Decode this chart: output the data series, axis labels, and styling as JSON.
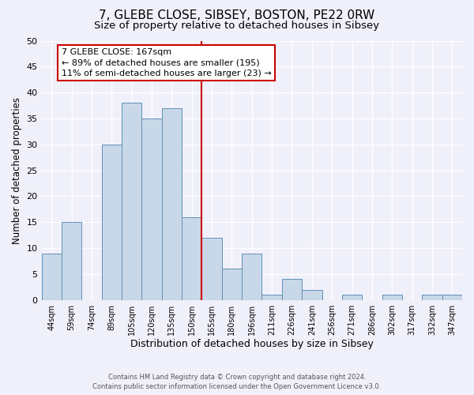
{
  "title": "7, GLEBE CLOSE, SIBSEY, BOSTON, PE22 0RW",
  "subtitle": "Size of property relative to detached houses in Sibsey",
  "xlabel": "Distribution of detached houses by size in Sibsey",
  "ylabel": "Number of detached properties",
  "bin_labels": [
    "44sqm",
    "59sqm",
    "74sqm",
    "89sqm",
    "105sqm",
    "120sqm",
    "135sqm",
    "150sqm",
    "165sqm",
    "180sqm",
    "196sqm",
    "211sqm",
    "226sqm",
    "241sqm",
    "256sqm",
    "271sqm",
    "286sqm",
    "302sqm",
    "317sqm",
    "332sqm",
    "347sqm"
  ],
  "bin_values": [
    9,
    15,
    0,
    30,
    38,
    35,
    37,
    16,
    12,
    6,
    9,
    1,
    4,
    2,
    0,
    1,
    0,
    1,
    0,
    1,
    1
  ],
  "bar_color": "#c8d8e8",
  "bar_edge_color": "#6090b8",
  "vline_x_index": 8,
  "vline_color": "#cc0000",
  "ylim": [
    0,
    50
  ],
  "yticks": [
    0,
    5,
    10,
    15,
    20,
    25,
    30,
    35,
    40,
    45,
    50
  ],
  "annotation_line1": "7 GLEBE CLOSE: 167sqm",
  "annotation_line2": "← 89% of detached houses are smaller (195)",
  "annotation_line3": "11% of semi-detached houses are larger (23) →",
  "annotation_box_edge_color": "#cc0000",
  "annotation_box_face_color": "#ffffff",
  "footer_line1": "Contains HM Land Registry data © Crown copyright and database right 2024.",
  "footer_line2": "Contains public sector information licensed under the Open Government Licence v3.0.",
  "bg_color": "#f0f0fa",
  "grid_color": "#ffffff",
  "title_fontsize": 11,
  "subtitle_fontsize": 9.5,
  "xlabel_fontsize": 9,
  "ylabel_fontsize": 8.5,
  "tick_fontsize": 7,
  "annotation_fontsize": 8,
  "footer_fontsize": 6
}
